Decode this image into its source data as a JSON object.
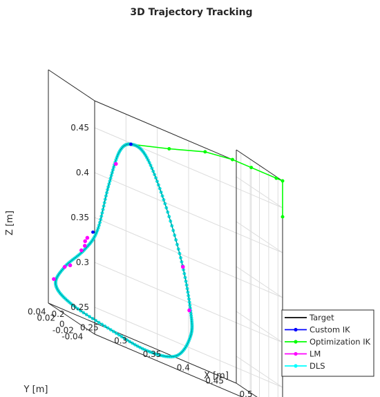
{
  "chart_data": {
    "type": "line",
    "title": "3D Trajectory Tracking",
    "xlabel": "X [m]",
    "ylabel": "Y [m]",
    "zlabel": "Z [m]",
    "x_ticks": [
      "0.2",
      "0.25",
      "0.3",
      "0.35",
      "0.4",
      "0.45",
      "0.5"
    ],
    "y_ticks": [
      "-0.04",
      "-0.02",
      "0",
      "0.02",
      "0.04"
    ],
    "z_ticks": [
      "0.25",
      "0.3",
      "0.35",
      "0.4",
      "0.45"
    ],
    "xlim": [
      0.2,
      0.5
    ],
    "ylim": [
      -0.05,
      0.05
    ],
    "zlim": [
      0.22,
      0.48
    ],
    "grid": true,
    "legend_position": "bottom-right",
    "series": [
      {
        "name": "Target",
        "color": "#000000",
        "marker": "none"
      },
      {
        "name": "Custom IK",
        "color": "#0000ff",
        "marker": "dot"
      },
      {
        "name": "Optimization IK",
        "color": "#00ff00",
        "marker": "dot"
      },
      {
        "name": "LM",
        "color": "#ff00ff",
        "marker": "dot"
      },
      {
        "name": "DLS",
        "color": "#00ffff",
        "marker": "dot"
      }
    ],
    "trajectory_loop": [
      {
        "x": 0.28,
        "y": -0.02,
        "z": 0.445
      },
      {
        "x": 0.265,
        "y": -0.015,
        "z": 0.43
      },
      {
        "x": 0.255,
        "y": -0.005,
        "z": 0.385
      },
      {
        "x": 0.245,
        "y": 0.005,
        "z": 0.33
      },
      {
        "x": 0.235,
        "y": 0.02,
        "z": 0.3
      },
      {
        "x": 0.215,
        "y": 0.035,
        "z": 0.27
      },
      {
        "x": 0.208,
        "y": 0.045,
        "z": 0.245
      },
      {
        "x": 0.225,
        "y": 0.035,
        "z": 0.232
      },
      {
        "x": 0.27,
        "y": 0.01,
        "z": 0.225
      },
      {
        "x": 0.31,
        "y": -0.015,
        "z": 0.222
      },
      {
        "x": 0.345,
        "y": -0.03,
        "z": 0.232
      },
      {
        "x": 0.362,
        "y": -0.038,
        "z": 0.262
      },
      {
        "x": 0.362,
        "y": -0.038,
        "z": 0.29
      },
      {
        "x": 0.35,
        "y": -0.035,
        "z": 0.34
      },
      {
        "x": 0.325,
        "y": -0.03,
        "z": 0.4
      },
      {
        "x": 0.3,
        "y": -0.025,
        "z": 0.44
      },
      {
        "x": 0.28,
        "y": -0.02,
        "z": 0.445
      }
    ],
    "optimization_ik_path": [
      {
        "x": 0.28,
        "y": -0.02,
        "z": 0.445
      },
      {
        "x": 0.33,
        "y": -0.035,
        "z": 0.46
      },
      {
        "x": 0.38,
        "y": -0.045,
        "z": 0.475
      },
      {
        "x": 0.42,
        "y": -0.05,
        "z": 0.48
      },
      {
        "x": 0.45,
        "y": -0.05,
        "z": 0.48
      },
      {
        "x": 0.49,
        "y": -0.05,
        "z": 0.48
      },
      {
        "x": 0.5,
        "y": -0.05,
        "z": 0.48
      },
      {
        "x": 0.5,
        "y": -0.05,
        "z": 0.44
      }
    ],
    "lm_points": [
      {
        "x": 0.262,
        "y": -0.012,
        "z": 0.415
      },
      {
        "x": 0.24,
        "y": 0.02,
        "z": 0.315
      },
      {
        "x": 0.238,
        "y": 0.022,
        "z": 0.31
      },
      {
        "x": 0.236,
        "y": 0.02,
        "z": 0.305
      },
      {
        "x": 0.232,
        "y": 0.022,
        "z": 0.298
      },
      {
        "x": 0.22,
        "y": 0.03,
        "z": 0.275
      },
      {
        "x": 0.215,
        "y": 0.035,
        "z": 0.27
      },
      {
        "x": 0.205,
        "y": 0.045,
        "z": 0.25
      },
      {
        "x": 0.352,
        "y": -0.035,
        "z": 0.335
      },
      {
        "x": 0.36,
        "y": -0.038,
        "z": 0.29
      }
    ],
    "custom_ik_points": [
      {
        "x": 0.243,
        "y": 0.012,
        "z": 0.325
      },
      {
        "x": 0.28,
        "y": -0.02,
        "z": 0.445
      }
    ]
  }
}
